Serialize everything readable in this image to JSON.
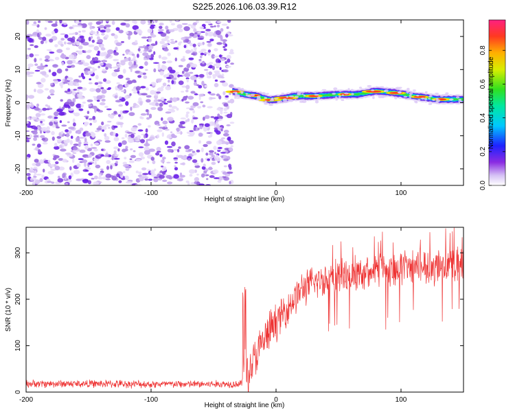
{
  "title": "S225.2026.106.03.39.R12",
  "chart_data": [
    {
      "type": "heatmap",
      "xlabel": "Height of straight line (km)",
      "ylabel": "Frequency (Hz)",
      "xlim": [
        -200,
        150
      ],
      "ylim": [
        -25,
        25
      ],
      "xticks": [
        -200,
        -100,
        0,
        100
      ],
      "xtick_labels": [
        "-200",
        "-100",
        "0",
        "100"
      ],
      "yticks": [
        -20,
        -10,
        0,
        10,
        20
      ],
      "ytick_labels": [
        "-20",
        "-10",
        "0",
        "10",
        "20"
      ],
      "noise_region_x": [
        -200,
        -35
      ],
      "signal_region_x": [
        -35,
        150
      ],
      "signal_frequency_trace": {
        "x": [
          -35,
          -25,
          -15,
          -5,
          5,
          15,
          30,
          50,
          65,
          80,
          95,
          110,
          130,
          150
        ],
        "y": [
          3.5,
          2.5,
          2.0,
          0.8,
          1.2,
          2.0,
          2.0,
          2.5,
          2.5,
          3.5,
          3.0,
          2.0,
          1.0,
          1.0
        ]
      },
      "colorbar": {
        "label": "Normalized spectral amplitude",
        "range": [
          0.0,
          0.98
        ],
        "ticks": [
          0.0,
          0.2,
          0.4,
          0.6,
          0.8
        ],
        "tick_labels": [
          "0.0",
          "0.2",
          "0.4",
          "0.6",
          "0.8"
        ]
      }
    },
    {
      "type": "line",
      "xlabel": "Height of straight line (km)",
      "ylabel": "SNR (10 * v/v)",
      "xlim": [
        -200,
        150
      ],
      "ylim": [
        0,
        355
      ],
      "xticks": [
        -200,
        -100,
        0,
        100
      ],
      "xtick_labels": [
        "-200",
        "-100",
        "0",
        "100"
      ],
      "yticks": [
        0,
        100,
        200,
        300
      ],
      "ytick_labels": [
        "0",
        "100",
        "200",
        "300"
      ],
      "color": "#ee3333",
      "series": [
        {
          "name": "SNR",
          "x": [
            -200,
            -150,
            -100,
            -50,
            -27,
            -25,
            -22,
            -20,
            -15,
            -10,
            -5,
            0,
            10,
            20,
            30,
            40,
            50,
            60,
            70,
            80,
            90,
            100,
            110,
            120,
            130,
            140,
            150
          ],
          "values": [
            18,
            18,
            17,
            17,
            18,
            70,
            30,
            60,
            80,
            110,
            130,
            150,
            185,
            220,
            235,
            245,
            248,
            255,
            258,
            262,
            262,
            270,
            268,
            272,
            265,
            270,
            275
          ]
        }
      ]
    }
  ]
}
